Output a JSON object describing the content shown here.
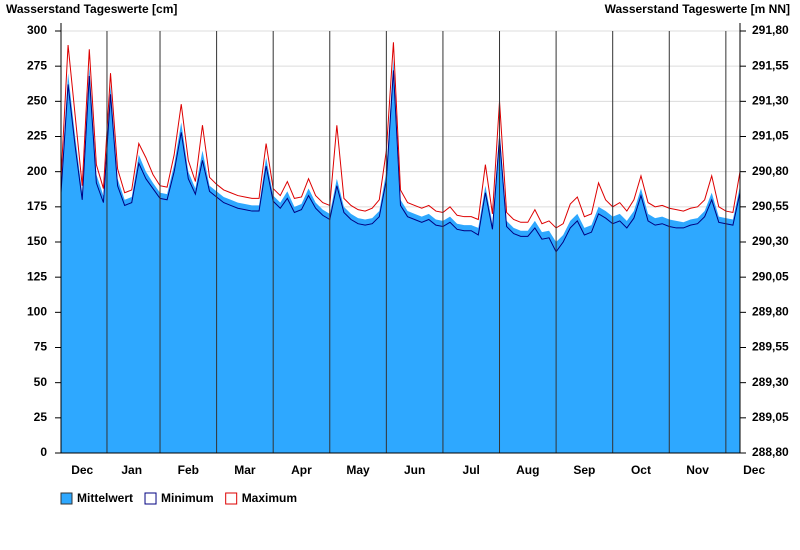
{
  "chart_data": {
    "type": "area",
    "y_title": "Wasserstand Tageswerte [cm]",
    "y2_title": "Wasserstand Tageswerte [m NN]",
    "categories": [
      null,
      null,
      null,
      "Dec",
      null,
      null,
      null,
      null,
      null,
      null,
      "Jan",
      null,
      null,
      null,
      null,
      null,
      null,
      null,
      "Feb",
      null,
      null,
      null,
      null,
      null,
      null,
      null,
      "Mar",
      null,
      null,
      null,
      null,
      null,
      null,
      null,
      "Apr",
      null,
      null,
      null,
      null,
      null,
      null,
      null,
      "May",
      null,
      null,
      null,
      null,
      null,
      null,
      null,
      "Jun",
      null,
      null,
      null,
      null,
      null,
      null,
      null,
      "Jul",
      null,
      null,
      null,
      null,
      null,
      null,
      null,
      "Aug",
      null,
      null,
      null,
      null,
      null,
      null,
      null,
      "Sep",
      null,
      null,
      null,
      null,
      null,
      null,
      null,
      "Oct",
      null,
      null,
      null,
      null,
      null,
      null,
      null,
      "Nov",
      null,
      null,
      null,
      null,
      null,
      null,
      null,
      "Dec"
    ],
    "series": [
      {
        "name": "Mittelwert",
        "type": "area",
        "color": "#2ea8ff",
        "values": [
          190,
          270,
          225,
          185,
          275,
          198,
          183,
          262,
          195,
          180,
          182,
          212,
          200,
          192,
          185,
          184,
          205,
          235,
          200,
          188,
          215,
          190,
          186,
          182,
          180,
          178,
          177,
          176,
          176,
          210,
          183,
          178,
          186,
          175,
          177,
          188,
          178,
          173,
          170,
          195,
          175,
          170,
          167,
          166,
          167,
          172,
          200,
          280,
          180,
          172,
          170,
          168,
          170,
          166,
          165,
          168,
          163,
          162,
          162,
          160,
          190,
          163,
          230,
          165,
          160,
          158,
          158,
          165,
          157,
          158,
          150,
          155,
          165,
          170,
          160,
          162,
          175,
          172,
          168,
          170,
          165,
          172,
          188,
          170,
          167,
          168,
          166,
          165,
          164,
          166,
          167,
          172,
          185,
          168,
          167,
          166,
          190,
          null,
          null
        ]
      },
      {
        "name": "Minimum",
        "type": "line",
        "color": "#000080",
        "values": [
          185,
          262,
          218,
          180,
          268,
          192,
          178,
          255,
          190,
          176,
          178,
          206,
          195,
          188,
          181,
          180,
          200,
          228,
          195,
          184,
          208,
          186,
          182,
          178,
          176,
          174,
          173,
          172,
          172,
          204,
          179,
          174,
          181,
          171,
          173,
          183,
          174,
          169,
          166,
          190,
          171,
          166,
          163,
          162,
          163,
          168,
          194,
          272,
          176,
          168,
          166,
          164,
          166,
          162,
          161,
          164,
          159,
          158,
          158,
          155,
          185,
          159,
          224,
          161,
          156,
          154,
          154,
          160,
          152,
          153,
          143,
          150,
          160,
          165,
          155,
          157,
          170,
          167,
          163,
          165,
          160,
          167,
          183,
          165,
          162,
          163,
          161,
          160,
          160,
          162,
          163,
          168,
          180,
          164,
          163,
          162,
          185,
          null,
          null
        ]
      },
      {
        "name": "Maximum",
        "type": "line",
        "color": "#dd0000",
        "values": [
          195,
          290,
          240,
          190,
          287,
          205,
          188,
          270,
          202,
          185,
          187,
          220,
          210,
          198,
          190,
          189,
          212,
          248,
          208,
          193,
          233,
          196,
          191,
          187,
          185,
          183,
          182,
          181,
          181,
          220,
          188,
          183,
          193,
          181,
          182,
          195,
          183,
          178,
          176,
          233,
          181,
          176,
          173,
          172,
          174,
          180,
          215,
          292,
          187,
          178,
          176,
          174,
          176,
          172,
          171,
          175,
          169,
          168,
          168,
          166,
          205,
          170,
          250,
          171,
          166,
          164,
          164,
          173,
          163,
          165,
          160,
          163,
          177,
          182,
          168,
          170,
          192,
          180,
          175,
          178,
          172,
          180,
          197,
          178,
          175,
          176,
          174,
          173,
          172,
          174,
          175,
          180,
          197,
          175,
          172,
          171,
          200,
          null,
          null
        ]
      }
    ],
    "ylim": [
      0,
      300
    ],
    "yticks": [
      0,
      25,
      50,
      75,
      100,
      125,
      150,
      175,
      200,
      225,
      250,
      275,
      300
    ],
    "y2lim": [
      288.8,
      291.8
    ],
    "y2ticks": [
      {
        "value": 288.8,
        "label": "288,80"
      },
      {
        "value": 289.05,
        "label": "289,05"
      },
      {
        "value": 289.3,
        "label": "289,30"
      },
      {
        "value": 289.55,
        "label": "289,55"
      },
      {
        "value": 289.8,
        "label": "289,80"
      },
      {
        "value": 290.05,
        "label": "290,05"
      },
      {
        "value": 290.3,
        "label": "290,30"
      },
      {
        "value": 290.55,
        "label": "290,55"
      },
      {
        "value": 290.8,
        "label": "290,80"
      },
      {
        "value": 291.05,
        "label": "291,05"
      },
      {
        "value": 291.3,
        "label": "291,30"
      },
      {
        "value": 291.55,
        "label": "291,55"
      },
      {
        "value": 291.8,
        "label": "291,80"
      }
    ],
    "grid": true,
    "legend": "bottom-left"
  }
}
